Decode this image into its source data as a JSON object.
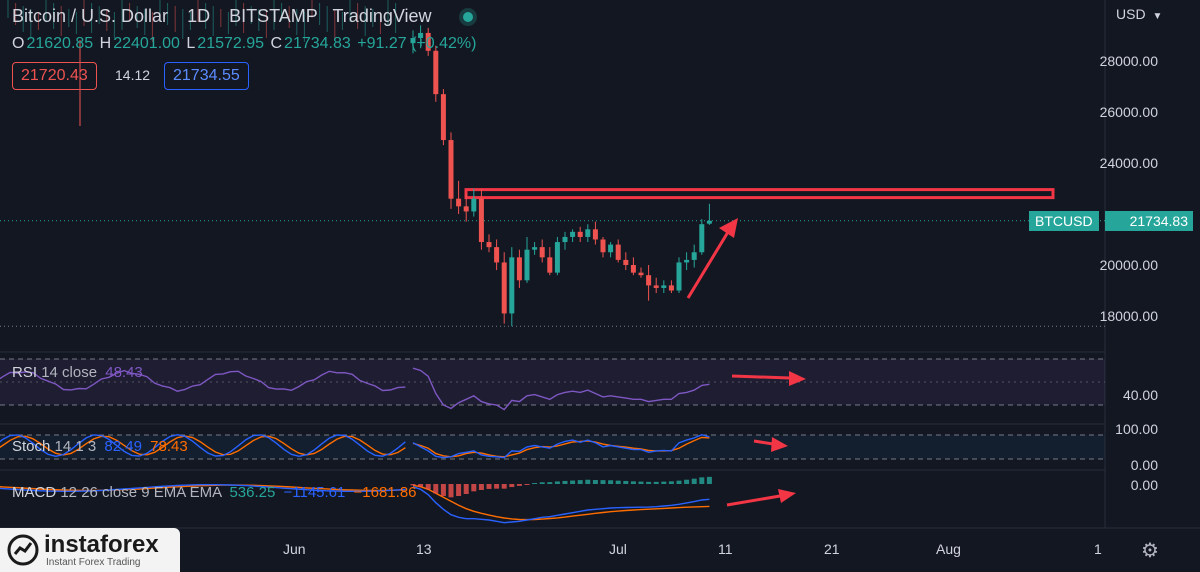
{
  "header": {
    "title": "Bitcoin / U.S. Dollar",
    "interval": "1D",
    "exchange": "BITSTAMP",
    "source": "TradingView",
    "currency": "USD"
  },
  "ohlc": {
    "o_label": "O",
    "o_value": "21620.85",
    "h_label": "H",
    "h_value": "22401.00",
    "l_label": "L",
    "l_value": "21572.95",
    "c_label": "C",
    "c_value": "21734.83",
    "change": "+91.27 (+0.42%)"
  },
  "quotes": {
    "bid": "21720.43",
    "spread": "14.12",
    "ask": "21734.55"
  },
  "price_axis": [
    "28000.00",
    "26000.00",
    "24000.00",
    "20000.00",
    "18000.00"
  ],
  "current_price": {
    "symbol": "BTCUSD",
    "value": "21734.83"
  },
  "time_axis": [
    "Jun",
    "13",
    "Jul",
    "11",
    "21",
    "Aug",
    "1"
  ],
  "rsi": {
    "name": "RSI",
    "params": "14 close",
    "value": "48.43",
    "axis": "40.00"
  },
  "stoch": {
    "name": "Stoch",
    "params": "14 1 3",
    "k": "82.49",
    "d": "78.43",
    "axis_top": "100.00",
    "axis_bottom": "0.00"
  },
  "macd": {
    "name": "MACD",
    "params": "12 26 close 9 EMA EMA",
    "hist": "536.25",
    "macd": "−1145.61",
    "signal": "−1681.86",
    "axis": "0.00"
  },
  "watermark": {
    "brand": "instaforex",
    "tagline": "Instant Forex Trading"
  },
  "colors": {
    "bg": "#131722",
    "up": "#26a69a",
    "down": "#ef5350",
    "rsi": "#7e57c2",
    "macd": "#2962ff",
    "signal": "#ff6d00",
    "annotation": "#f23645"
  },
  "chart_data": {
    "type": "candlestick",
    "candles": [
      [
        28700,
        29200,
        28300,
        28900
      ],
      [
        28900,
        29400,
        28500,
        29100
      ],
      [
        29100,
        29300,
        28200,
        28400
      ],
      [
        28400,
        28600,
        26400,
        26700
      ],
      [
        26700,
        26900,
        24700,
        24900
      ],
      [
        24900,
        25200,
        22200,
        22600
      ],
      [
        22600,
        23300,
        22000,
        22300
      ],
      [
        22300,
        22800,
        21700,
        22100
      ],
      [
        22100,
        23000,
        21900,
        22600
      ],
      [
        22600,
        23000,
        20600,
        20900
      ],
      [
        20900,
        21200,
        20500,
        20700
      ],
      [
        20700,
        21000,
        19800,
        20100
      ],
      [
        20100,
        20500,
        17700,
        18100
      ],
      [
        18100,
        20700,
        17600,
        20300
      ],
      [
        20300,
        20600,
        19100,
        19400
      ],
      [
        19400,
        21100,
        19300,
        20600
      ],
      [
        20600,
        20900,
        20400,
        20700
      ],
      [
        20700,
        21000,
        20100,
        20300
      ],
      [
        20300,
        20700,
        19600,
        19700
      ],
      [
        19700,
        21100,
        19600,
        20900
      ],
      [
        20900,
        21300,
        20600,
        21100
      ],
      [
        21100,
        21400,
        20900,
        21300
      ],
      [
        21300,
        21500,
        20900,
        21100
      ],
      [
        21100,
        21600,
        20900,
        21400
      ],
      [
        21400,
        21700,
        20800,
        21000
      ],
      [
        21000,
        21100,
        20300,
        20500
      ],
      [
        20500,
        20900,
        20300,
        20800
      ],
      [
        20800,
        21000,
        20100,
        20200
      ],
      [
        20200,
        20500,
        19800,
        20000
      ],
      [
        20000,
        20300,
        19600,
        19700
      ],
      [
        19700,
        19900,
        19500,
        19600
      ],
      [
        19600,
        20000,
        18600,
        19200
      ],
      [
        19200,
        19500,
        18900,
        19100
      ],
      [
        19100,
        19400,
        18900,
        19200
      ],
      [
        19200,
        19400,
        18900,
        19000
      ],
      [
        19000,
        20300,
        18900,
        20100
      ],
      [
        20100,
        20500,
        19800,
        20200
      ],
      [
        20200,
        20800,
        19900,
        20500
      ],
      [
        20500,
        21800,
        20400,
        21600
      ],
      [
        21620.85,
        22401,
        21572.95,
        21734.83
      ]
    ],
    "annotations": {
      "resistance_level": 22800,
      "current_price_line": 21734.83,
      "low_line": 17600
    },
    "rsi_series": [
      62,
      60,
      55,
      40,
      30,
      27,
      32,
      35,
      38,
      33,
      31,
      30,
      26,
      34,
      33,
      38,
      39,
      37,
      35,
      39,
      41,
      42,
      41,
      43,
      40,
      37,
      38,
      37,
      36,
      35,
      35,
      33,
      34,
      35,
      35,
      40,
      41,
      43,
      47,
      48
    ],
    "stoch_k": [
      60,
      45,
      30,
      10,
      5,
      8,
      20,
      25,
      30,
      15,
      10,
      8,
      5,
      30,
      28,
      45,
      50,
      45,
      40,
      55,
      65,
      70,
      62,
      70,
      60,
      45,
      50,
      45,
      40,
      35,
      35,
      25,
      30,
      32,
      30,
      60,
      70,
      78,
      90,
      82
    ],
    "stoch_d": [
      58,
      50,
      40,
      20,
      12,
      8,
      12,
      20,
      25,
      22,
      15,
      10,
      8,
      15,
      22,
      35,
      42,
      46,
      44,
      48,
      56,
      63,
      65,
      67,
      63,
      55,
      50,
      47,
      44,
      40,
      37,
      32,
      30,
      30,
      31,
      40,
      55,
      68,
      80,
      78
    ],
    "macd_series": [
      -200,
      -400,
      -800,
      -1400,
      -1900,
      -2300,
      -2500,
      -2600,
      -2600,
      -2650,
      -2700,
      -2800,
      -2900,
      -2850,
      -2800,
      -2700,
      -2600,
      -2500,
      -2450,
      -2350,
      -2250,
      -2150,
      -2050,
      -1950,
      -1900,
      -1850,
      -1800,
      -1780,
      -1760,
      -1750,
      -1740,
      -1730,
      -1700,
      -1650,
      -1600,
      -1520,
      -1420,
      -1320,
      -1200,
      -1146
    ],
    "signal_series": [
      -100,
      -200,
      -400,
      -700,
      -1000,
      -1300,
      -1600,
      -1850,
      -2050,
      -2200,
      -2330,
      -2450,
      -2550,
      -2620,
      -2660,
      -2670,
      -2660,
      -2630,
      -2590,
      -2540,
      -2480,
      -2410,
      -2340,
      -2270,
      -2200,
      -2140,
      -2080,
      -2030,
      -1990,
      -1950,
      -1920,
      -1890,
      -1860,
      -1830,
      -1800,
      -1770,
      -1740,
      -1720,
      -1700,
      -1682
    ]
  }
}
